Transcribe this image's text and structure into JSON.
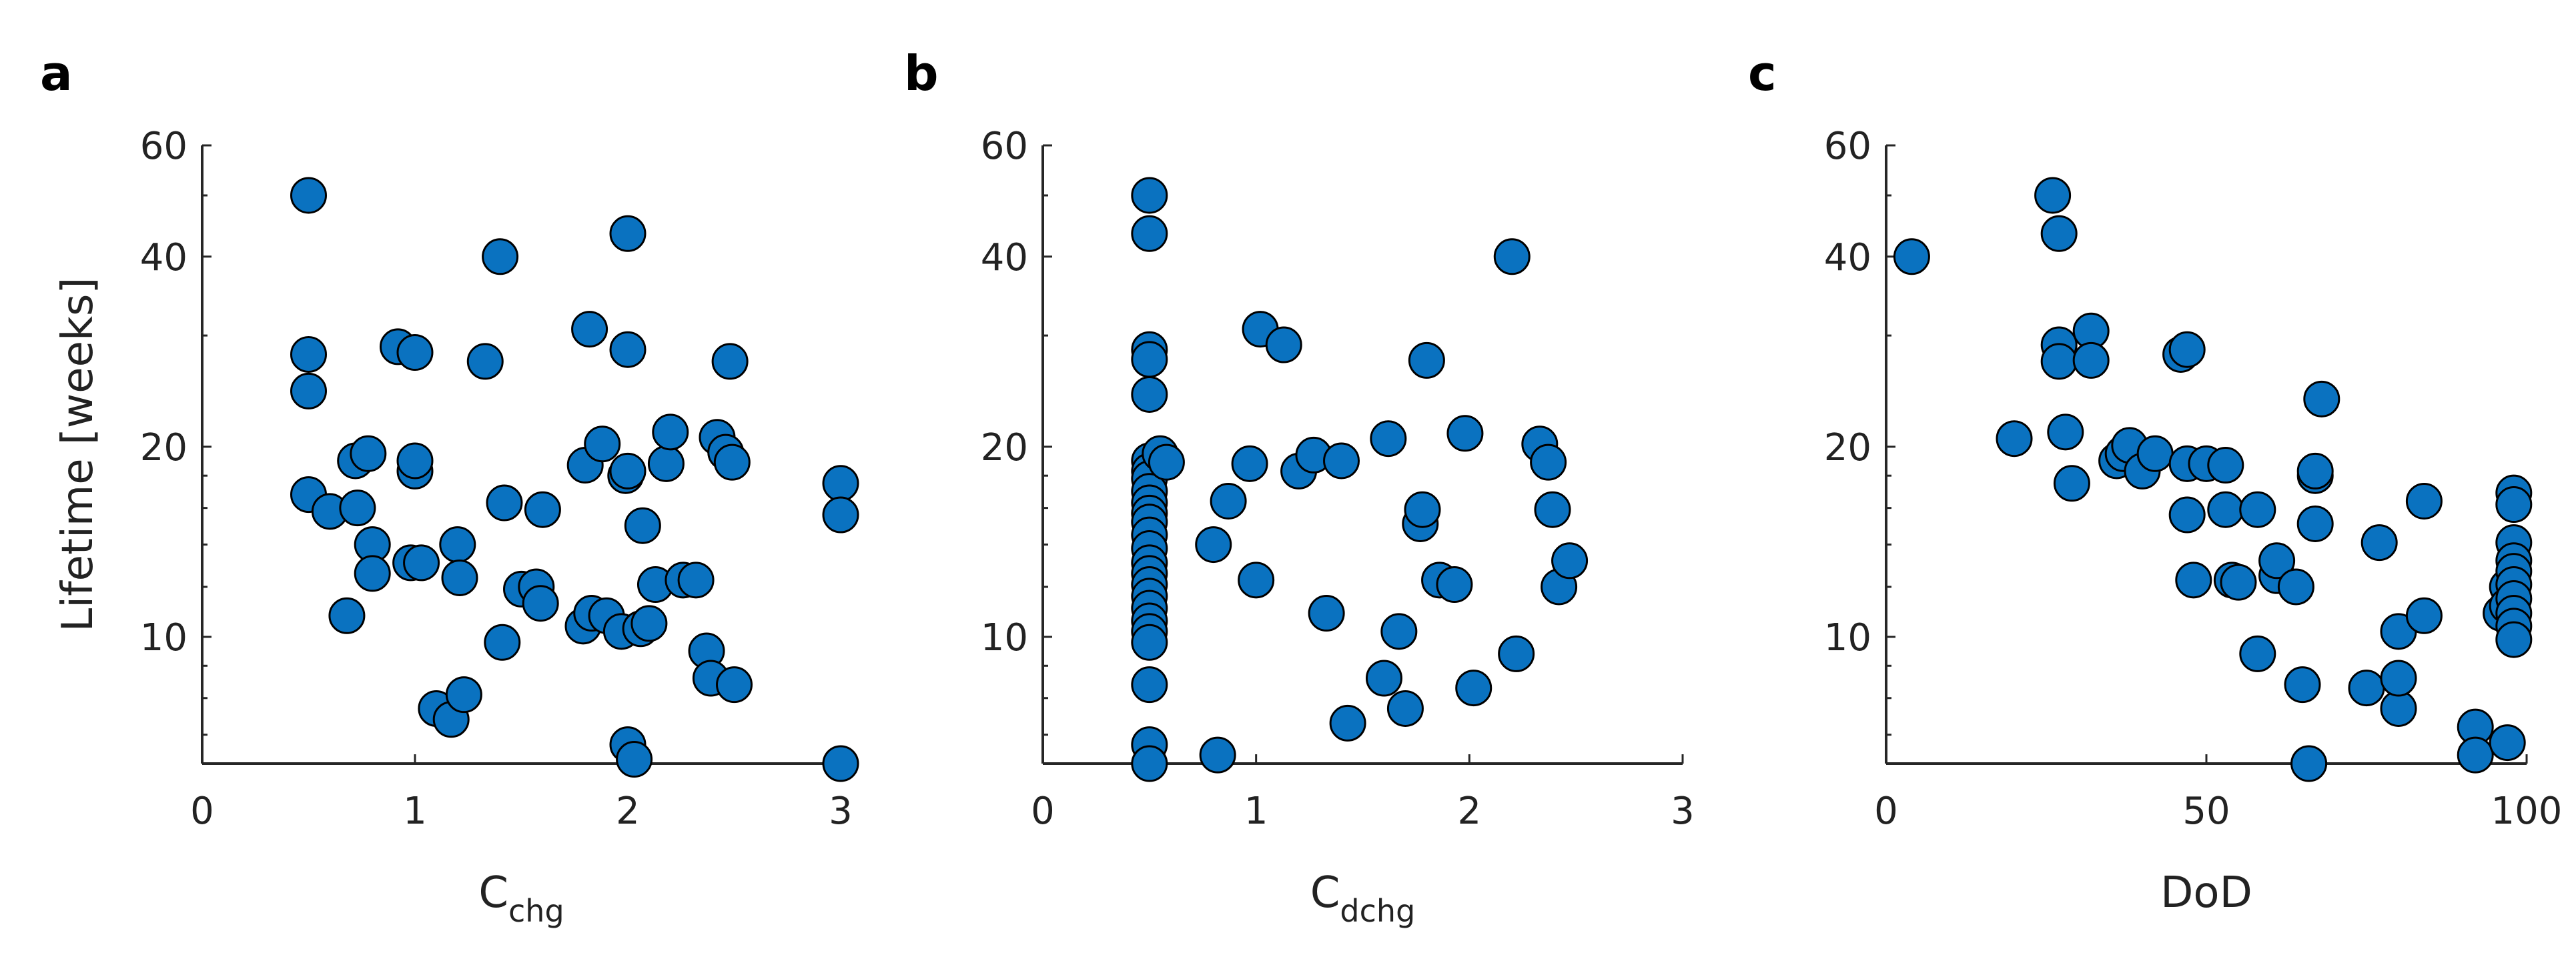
{
  "chart_data": [
    {
      "type": "scatter",
      "panel": "a",
      "xlabel": "C",
      "xlabel_sub": "chg",
      "ylabel": "Lifetime [weeks]",
      "xlim": [
        0,
        3
      ],
      "ylim": [
        6.3,
        60
      ],
      "yscale": "log",
      "xticks": [
        "0",
        "1",
        "2",
        "3"
      ],
      "yticks": [
        "10",
        "20",
        "40",
        "60"
      ],
      "grid": false,
      "marker_color": "#0a72c0",
      "points": [
        [
          0.5,
          50
        ],
        [
          0.5,
          28
        ],
        [
          0.5,
          24.5
        ],
        [
          0.5,
          16.8
        ],
        [
          0.6,
          15.8
        ],
        [
          0.68,
          10.8
        ],
        [
          0.72,
          19
        ],
        [
          0.73,
          16
        ],
        [
          0.78,
          19.5
        ],
        [
          0.8,
          14
        ],
        [
          0.8,
          12.6
        ],
        [
          0.92,
          28.8
        ],
        [
          0.98,
          13.1
        ],
        [
          1.0,
          28.2
        ],
        [
          1.0,
          18.3
        ],
        [
          1.0,
          19
        ],
        [
          1.03,
          13.1
        ],
        [
          1.1,
          7.7
        ],
        [
          1.17,
          7.4
        ],
        [
          1.2,
          14
        ],
        [
          1.21,
          12.4
        ],
        [
          1.23,
          8.1
        ],
        [
          1.33,
          27.3
        ],
        [
          1.4,
          40
        ],
        [
          1.41,
          9.8
        ],
        [
          1.42,
          16.3
        ],
        [
          1.5,
          11.9
        ],
        [
          1.57,
          12
        ],
        [
          1.59,
          11.3
        ],
        [
          1.6,
          15.9
        ],
        [
          1.79,
          10.4
        ],
        [
          1.8,
          18.7
        ],
        [
          1.82,
          30.7
        ],
        [
          1.83,
          10.9
        ],
        [
          1.88,
          20.2
        ],
        [
          1.9,
          10.8
        ],
        [
          1.97,
          10.2
        ],
        [
          1.99,
          18
        ],
        [
          2.0,
          28.5
        ],
        [
          2.0,
          18.3
        ],
        [
          2.0,
          43.5
        ],
        [
          2.0,
          6.75
        ],
        [
          2.03,
          6.4
        ],
        [
          2.06,
          10.3
        ],
        [
          2.07,
          15
        ],
        [
          2.1,
          10.5
        ],
        [
          2.13,
          12.1
        ],
        [
          2.18,
          18.8
        ],
        [
          2.2,
          21.1
        ],
        [
          2.26,
          12.3
        ],
        [
          2.32,
          12.3
        ],
        [
          2.37,
          9.5
        ],
        [
          2.39,
          8.6
        ],
        [
          2.42,
          20.7
        ],
        [
          2.46,
          19.6
        ],
        [
          2.48,
          27.3
        ],
        [
          2.49,
          18.9
        ],
        [
          2.5,
          8.4
        ],
        [
          3.0,
          17.5
        ],
        [
          3.0,
          15.6
        ],
        [
          3.0,
          6.3
        ]
      ]
    },
    {
      "type": "scatter",
      "panel": "b",
      "xlabel": "C",
      "xlabel_sub": "dchg",
      "ylabel": "",
      "xlim": [
        0,
        3
      ],
      "ylim": [
        6.3,
        60
      ],
      "yscale": "log",
      "xticks": [
        "0",
        "1",
        "2",
        "3"
      ],
      "yticks": [
        "10",
        "20",
        "40",
        "60"
      ],
      "grid": false,
      "marker_color": "#0a72c0",
      "points": [
        [
          0.5,
          50
        ],
        [
          0.5,
          43.5
        ],
        [
          0.5,
          28.5
        ],
        [
          0.5,
          27.5
        ],
        [
          0.5,
          24.2
        ],
        [
          0.5,
          19
        ],
        [
          0.5,
          18.3
        ],
        [
          0.5,
          17.8
        ],
        [
          0.5,
          17
        ],
        [
          0.5,
          16.3
        ],
        [
          0.5,
          15.7
        ],
        [
          0.5,
          15.2
        ],
        [
          0.5,
          14.5
        ],
        [
          0.5,
          13.8
        ],
        [
          0.5,
          13.1
        ],
        [
          0.5,
          12.6
        ],
        [
          0.5,
          12.1
        ],
        [
          0.5,
          11.6
        ],
        [
          0.5,
          11.1
        ],
        [
          0.5,
          10.6
        ],
        [
          0.5,
          10.2
        ],
        [
          0.5,
          9.8
        ],
        [
          0.5,
          8.4
        ],
        [
          0.5,
          6.75
        ],
        [
          0.5,
          6.3
        ],
        [
          0.55,
          19.5
        ],
        [
          0.58,
          18.9
        ],
        [
          0.8,
          14
        ],
        [
          0.82,
          6.5
        ],
        [
          0.87,
          16.4
        ],
        [
          0.97,
          18.8
        ],
        [
          1.0,
          12.3
        ],
        [
          1.02,
          30.7
        ],
        [
          1.13,
          29
        ],
        [
          1.2,
          18.3
        ],
        [
          1.27,
          19.4
        ],
        [
          1.33,
          10.9
        ],
        [
          1.4,
          19
        ],
        [
          1.43,
          7.3
        ],
        [
          1.6,
          8.6
        ],
        [
          1.62,
          20.6
        ],
        [
          1.67,
          10.2
        ],
        [
          1.7,
          7.7
        ],
        [
          1.77,
          15.1
        ],
        [
          1.78,
          15.9
        ],
        [
          1.8,
          27.4
        ],
        [
          1.86,
          12.3
        ],
        [
          1.93,
          12.1
        ],
        [
          1.98,
          21
        ],
        [
          2.02,
          8.3
        ],
        [
          2.2,
          40
        ],
        [
          2.22,
          9.4
        ],
        [
          2.33,
          20.2
        ],
        [
          2.37,
          18.9
        ],
        [
          2.39,
          15.9
        ],
        [
          2.42,
          12
        ],
        [
          2.47,
          13.2
        ]
      ]
    },
    {
      "type": "scatter",
      "panel": "c",
      "xlabel": "DoD",
      "xlabel_sub": "",
      "ylabel": "",
      "xlim": [
        0,
        100
      ],
      "ylim": [
        6.3,
        60
      ],
      "yscale": "log",
      "xticks": [
        "0",
        "50",
        "100"
      ],
      "yticks": [
        "10",
        "20",
        "40",
        "60"
      ],
      "grid": false,
      "marker_color": "#0a72c0",
      "points": [
        [
          4,
          40
        ],
        [
          20,
          20.6
        ],
        [
          26,
          50
        ],
        [
          27,
          43.5
        ],
        [
          27,
          29
        ],
        [
          27,
          27.3
        ],
        [
          28,
          21.1
        ],
        [
          29,
          17.5
        ],
        [
          32,
          30.5
        ],
        [
          32,
          27.4
        ],
        [
          36,
          19
        ],
        [
          37,
          19.5
        ],
        [
          38,
          20.1
        ],
        [
          40,
          18.3
        ],
        [
          42,
          19.5
        ],
        [
          46,
          28
        ],
        [
          47,
          28.5
        ],
        [
          47,
          18.8
        ],
        [
          47,
          15.6
        ],
        [
          48,
          12.3
        ],
        [
          50,
          18.8
        ],
        [
          53,
          15.9
        ],
        [
          53,
          18.7
        ],
        [
          54,
          12.3
        ],
        [
          55,
          12.2
        ],
        [
          58,
          15.9
        ],
        [
          58,
          9.4
        ],
        [
          61,
          12.5
        ],
        [
          61,
          13.2
        ],
        [
          64,
          12
        ],
        [
          65,
          8.4
        ],
        [
          66,
          6.3
        ],
        [
          67,
          18
        ],
        [
          67,
          18.3
        ],
        [
          67,
          15.1
        ],
        [
          68,
          23.8
        ],
        [
          75,
          8.3
        ],
        [
          77,
          14.1
        ],
        [
          80,
          7.7
        ],
        [
          80,
          8.6
        ],
        [
          80,
          10.2
        ],
        [
          84,
          16.4
        ],
        [
          84,
          10.8
        ],
        [
          92,
          7.2
        ],
        [
          92,
          6.5
        ],
        [
          96,
          10.9
        ],
        [
          97,
          12
        ],
        [
          97,
          6.8
        ],
        [
          97,
          11.2
        ],
        [
          98,
          16.9
        ],
        [
          98,
          16.2
        ],
        [
          98,
          14.1
        ],
        [
          98,
          13.2
        ],
        [
          98,
          12.7
        ],
        [
          98,
          12.1
        ],
        [
          98,
          11.5
        ],
        [
          98,
          10.9
        ],
        [
          98,
          10.4
        ],
        [
          98,
          9.9
        ]
      ]
    }
  ]
}
